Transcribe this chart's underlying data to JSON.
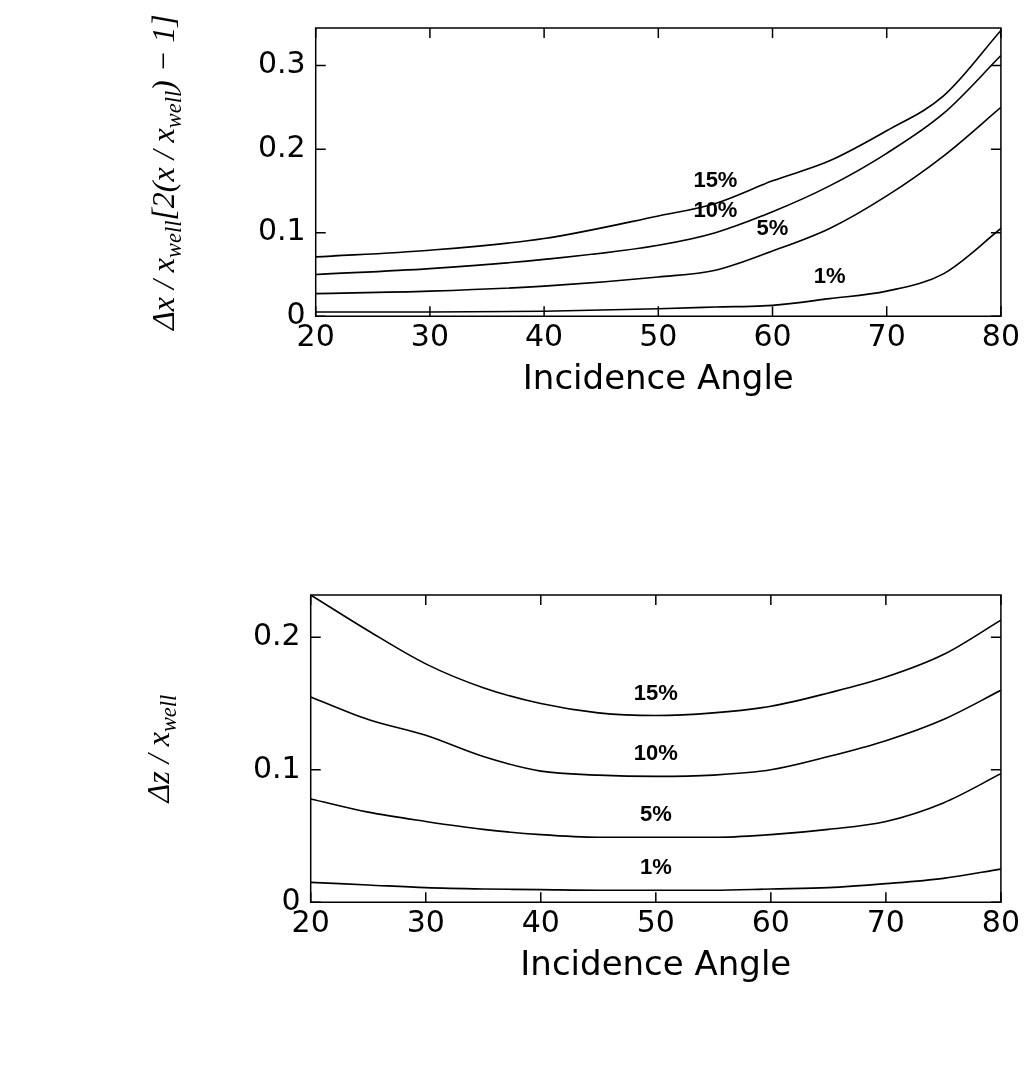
{
  "chart_data": [
    {
      "type": "line",
      "xlabel": "Incidence Angle",
      "ylabel": "Δx / x$_{well}$[2(x / x$_{well}$) − 1]",
      "x": [
        20,
        30,
        40,
        50,
        55,
        60,
        65,
        70,
        75,
        80
      ],
      "xlim": [
        20,
        80
      ],
      "xticks": [
        20,
        30,
        40,
        50,
        60,
        70,
        80
      ],
      "ylim": [
        0,
        0.345
      ],
      "yticks": [
        0,
        0.1,
        0.2,
        0.3
      ],
      "marker": "none",
      "line_style": "solid",
      "series": [
        {
          "color": "#000000",
          "values": [
            0.071,
            0.079,
            0.093,
            0.12,
            0.135,
            0.162,
            0.186,
            0.222,
            0.264,
            0.342
          ]
        },
        {
          "color": "#000000",
          "values": [
            0.05,
            0.057,
            0.068,
            0.085,
            0.1,
            0.125,
            0.156,
            0.195,
            0.243,
            0.312
          ]
        },
        {
          "color": "#000000",
          "values": [
            0.027,
            0.03,
            0.036,
            0.047,
            0.055,
            0.078,
            0.105,
            0.144,
            0.192,
            0.25
          ]
        },
        {
          "color": "#000000",
          "values": [
            0.005,
            0.005,
            0.006,
            0.009,
            0.011,
            0.013,
            0.021,
            0.03,
            0.051,
            0.105
          ]
        }
      ],
      "annotations": [
        {
          "text": "15%",
          "x": 55,
          "y": 0.135
        },
        {
          "text": "10%",
          "x": 55,
          "y": 0.1
        },
        {
          "text": "5%",
          "x": 60,
          "y": 0.078
        },
        {
          "text": "1%",
          "x": 65,
          "y": 0.021
        }
      ]
    },
    {
      "type": "line",
      "xlabel": "Incidence Angle",
      "ylabel": "Δz / x$_{well}$",
      "x": [
        20,
        25,
        30,
        35,
        40,
        45,
        50,
        55,
        60,
        65,
        70,
        75,
        80
      ],
      "xlim": [
        20,
        80
      ],
      "xticks": [
        20,
        30,
        40,
        50,
        60,
        70,
        80
      ],
      "ylim": [
        0,
        0.232
      ],
      "yticks": [
        0,
        0.1,
        0.2
      ],
      "marker": "none",
      "line_style": "solid",
      "series": [
        {
          "color": "#000000",
          "values": [
            0.232,
            0.205,
            0.18,
            0.162,
            0.15,
            0.143,
            0.141,
            0.143,
            0.148,
            0.158,
            0.17,
            0.187,
            0.213
          ]
        },
        {
          "color": "#000000",
          "values": [
            0.155,
            0.138,
            0.126,
            0.11,
            0.099,
            0.096,
            0.095,
            0.096,
            0.1,
            0.11,
            0.122,
            0.138,
            0.16
          ]
        },
        {
          "color": "#000000",
          "values": [
            0.078,
            0.068,
            0.061,
            0.055,
            0.051,
            0.049,
            0.049,
            0.049,
            0.051,
            0.055,
            0.061,
            0.075,
            0.097
          ]
        },
        {
          "color": "#000000",
          "values": [
            0.015,
            0.013,
            0.011,
            0.01,
            0.0095,
            0.009,
            0.009,
            0.009,
            0.01,
            0.011,
            0.014,
            0.018,
            0.025
          ]
        }
      ],
      "annotations": [
        {
          "text": "15%",
          "x": 50,
          "y": 0.141
        },
        {
          "text": "10%",
          "x": 50,
          "y": 0.095
        },
        {
          "text": "5%",
          "x": 50,
          "y": 0.049
        },
        {
          "text": "1%",
          "x": 50,
          "y": 0.009
        }
      ]
    }
  ]
}
